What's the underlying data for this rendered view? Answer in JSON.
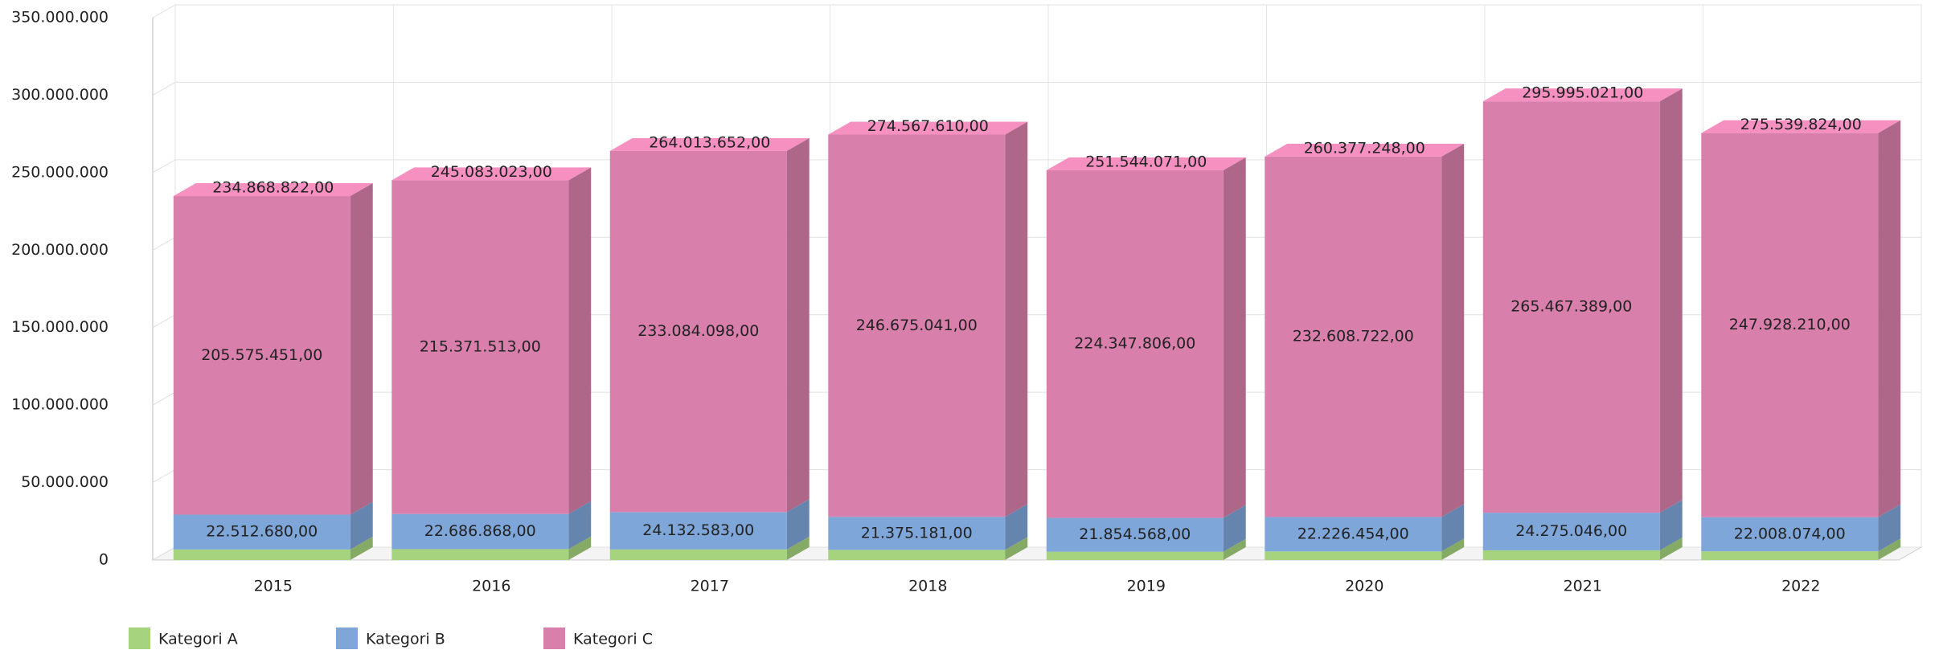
{
  "chart_data": {
    "type": "bar3d_stacked",
    "categories": [
      "2015",
      "2016",
      "2017",
      "2018",
      "2019",
      "2020",
      "2021",
      "2022"
    ],
    "series": [
      {
        "name": "Kategori A",
        "color": "#a6d47e",
        "values": [
          6780691,
          7024642,
          6796971,
          6517388,
          5341697,
          5542072,
          6252586,
          5603540
        ]
      },
      {
        "name": "Kategori B",
        "color": "#7ea6d9",
        "values": [
          22512680,
          22686868,
          24132583,
          21375181,
          21854568,
          22226454,
          24275046,
          22008074
        ],
        "value_labels": [
          "22.512.680,00",
          "22.686.868,00",
          "24.132.583,00",
          "21.375.181,00",
          "21.854.568,00",
          "22.226.454,00",
          "24.275.046,00",
          "22.008.074,00"
        ]
      },
      {
        "name": "Kategori C",
        "color": "#d97fab",
        "values": [
          205575451,
          215371513,
          233084098,
          246675041,
          224347806,
          232608722,
          265467389,
          247928210
        ],
        "value_labels": [
          "205.575.451,00",
          "215.371.513,00",
          "233.084.098,00",
          "246.675.041,00",
          "224.347.806,00",
          "232.608.722,00",
          "265.467.389,00",
          "247.928.210,00"
        ]
      }
    ],
    "total_labels": [
      "234.868.822,00",
      "245.083.023,00",
      "264.013.652,00",
      "274.567.610,00",
      "251.544.071,00",
      "260.377.248,00",
      "295.995.021,00",
      "275.539.824,00"
    ],
    "ylim": [
      0,
      350000000
    ],
    "yticks": [
      0,
      {
        "value": 50000000,
        "label": "50.000.000"
      },
      {
        "value": 100000000,
        "label": "100.000.000"
      },
      {
        "value": 150000000,
        "label": "150.000.000"
      },
      {
        "value": 200000000,
        "label": "200.000.000"
      },
      {
        "value": 250000000,
        "label": "250.000.000"
      },
      {
        "value": 300000000,
        "label": "300.000.000"
      },
      {
        "value": 350000000,
        "label": "350.000.000"
      }
    ],
    "grid": true,
    "legend": "bottom-left"
  }
}
